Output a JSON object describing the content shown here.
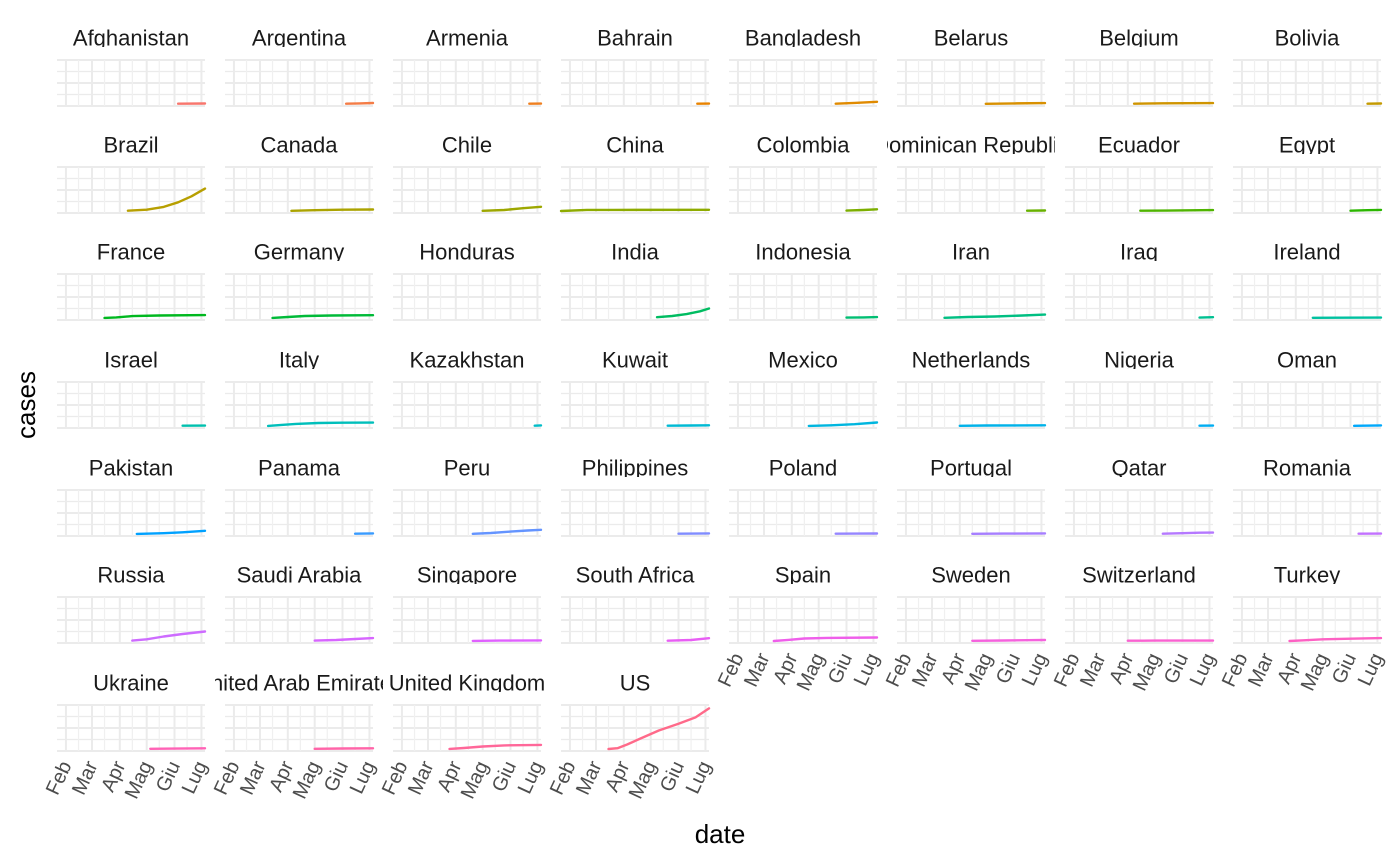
{
  "chart_data": {
    "type": "line",
    "layout": "facet-grid",
    "facet_columns": 8,
    "xlabel": "date",
    "ylabel": "cases",
    "x_tick_labels": [
      "Feb",
      "Mar",
      "Apr",
      "Mag",
      "Giu",
      "Lug"
    ],
    "xlim": [
      "2020-01-22",
      "2020-07-05"
    ],
    "ylim": [
      0,
      3000000
    ],
    "y_tick_labels_shown": false,
    "grid": true,
    "legend": "none",
    "panels": [
      {
        "name": "Afghanistan",
        "color": "#F8766D",
        "x": [
          "2020-06-05",
          "2020-07-05"
        ],
        "y": [
          18000,
          33000
        ]
      },
      {
        "name": "Argentina",
        "color": "#F47C46",
        "x": [
          "2020-06-05",
          "2020-06-20",
          "2020-07-05"
        ],
        "y": [
          20000,
          40000,
          75000
        ]
      },
      {
        "name": "Armenia",
        "color": "#EF7F1F",
        "x": [
          "2020-06-22",
          "2020-07-05"
        ],
        "y": [
          20000,
          29000
        ]
      },
      {
        "name": "Bahrain",
        "color": "#E98300",
        "x": [
          "2020-06-22",
          "2020-07-05"
        ],
        "y": [
          20000,
          29000
        ]
      },
      {
        "name": "Bangladesh",
        "color": "#E08A00",
        "x": [
          "2020-05-20",
          "2020-06-10",
          "2020-07-05"
        ],
        "y": [
          25000,
          80000,
          160000
        ]
      },
      {
        "name": "Belarus",
        "color": "#D89000",
        "x": [
          "2020-04-30",
          "2020-06-01",
          "2020-07-05"
        ],
        "y": [
          15000,
          42000,
          63000
        ]
      },
      {
        "name": "Belgium",
        "color": "#CF9400",
        "x": [
          "2020-04-08",
          "2020-05-10",
          "2020-07-05"
        ],
        "y": [
          22000,
          53000,
          62000
        ]
      },
      {
        "name": "Bolivia",
        "color": "#C49A00",
        "x": [
          "2020-06-20",
          "2020-07-05"
        ],
        "y": [
          20000,
          38000
        ]
      },
      {
        "name": "Brazil",
        "color": "#B79F00",
        "x": [
          "2020-04-10",
          "2020-05-01",
          "2020-05-20",
          "2020-06-05",
          "2020-06-20",
          "2020-07-05"
        ],
        "y": [
          18000,
          90000,
          290000,
          620000,
          1050000,
          1600000
        ]
      },
      {
        "name": "Canada",
        "color": "#ABA300",
        "x": [
          "2020-04-05",
          "2020-05-01",
          "2020-06-01",
          "2020-07-05"
        ],
        "y": [
          15000,
          55000,
          90000,
          105000
        ]
      },
      {
        "name": "Chile",
        "color": "#9DA700",
        "x": [
          "2020-05-01",
          "2020-05-25",
          "2020-06-15",
          "2020-07-05"
        ],
        "y": [
          17000,
          70000,
          200000,
          300000
        ]
      },
      {
        "name": "China",
        "color": "#8EAB00",
        "x": [
          "2020-01-22",
          "2020-02-20",
          "2020-03-20",
          "2020-07-05"
        ],
        "y": [
          500,
          75000,
          81000,
          85000
        ]
      },
      {
        "name": "Colombia",
        "color": "#7CAE00",
        "x": [
          "2020-06-01",
          "2020-06-20",
          "2020-07-05"
        ],
        "y": [
          30000,
          70000,
          120000
        ]
      },
      {
        "name": "Dominican Republic",
        "color": "#68B100",
        "x": [
          "2020-06-15",
          "2020-07-05"
        ],
        "y": [
          22000,
          37000
        ]
      },
      {
        "name": "Ecuador",
        "color": "#4FB400",
        "x": [
          "2020-04-15",
          "2020-05-15",
          "2020-07-05"
        ],
        "y": [
          20000,
          32000,
          62000
        ]
      },
      {
        "name": "Egypt",
        "color": "#2BB600",
        "x": [
          "2020-06-01",
          "2020-06-20",
          "2020-07-05"
        ],
        "y": [
          25000,
          55000,
          75000
        ]
      },
      {
        "name": "France",
        "color": "#00B81F",
        "x": [
          "2020-03-15",
          "2020-03-28",
          "2020-04-15",
          "2020-05-15",
          "2020-07-05"
        ],
        "y": [
          5000,
          40000,
          135000,
          180000,
          205000
        ]
      },
      {
        "name": "Germany",
        "color": "#00BA38",
        "x": [
          "2020-03-15",
          "2020-04-01",
          "2020-04-20",
          "2020-05-20",
          "2020-07-05"
        ],
        "y": [
          6000,
          70000,
          145000,
          180000,
          197000
        ]
      },
      {
        "name": "Honduras",
        "color": "#00BB4E",
        "x": [],
        "y": []
      },
      {
        "name": "India",
        "color": "#00BC61",
        "x": [
          "2020-05-08",
          "2020-05-25",
          "2020-06-10",
          "2020-06-25",
          "2020-07-05"
        ],
        "y": [
          60000,
          140000,
          280000,
          480000,
          680000
        ]
      },
      {
        "name": "Indonesia",
        "color": "#00BE72",
        "x": [
          "2020-06-01",
          "2020-06-20",
          "2020-07-05"
        ],
        "y": [
          27000,
          46000,
          63000
        ]
      },
      {
        "name": "Iran",
        "color": "#00BF82",
        "x": [
          "2020-03-15",
          "2020-04-10",
          "2020-05-10",
          "2020-06-10",
          "2020-07-05"
        ],
        "y": [
          15000,
          70000,
          110000,
          180000,
          240000
        ]
      },
      {
        "name": "Iraq",
        "color": "#00C091",
        "x": [
          "2020-06-20",
          "2020-07-05"
        ],
        "y": [
          30000,
          55000
        ]
      },
      {
        "name": "Ireland",
        "color": "#00C1A0",
        "x": [
          "2020-04-20",
          "2020-05-20",
          "2020-07-05"
        ],
        "y": [
          16000,
          24000,
          25500
        ]
      },
      {
        "name": "Israel",
        "color": "#00C0AE",
        "x": [
          "2020-06-10",
          "2020-07-05"
        ],
        "y": [
          18000,
          30000
        ]
      },
      {
        "name": "Italy",
        "color": "#00BFBB",
        "x": [
          "2020-03-10",
          "2020-03-25",
          "2020-04-10",
          "2020-05-05",
          "2020-06-01",
          "2020-07-05"
        ],
        "y": [
          10000,
          75000,
          150000,
          212000,
          233000,
          241000
        ]
      },
      {
        "name": "Kazakhstan",
        "color": "#00BDC8",
        "x": [
          "2020-06-28",
          "2020-07-05"
        ],
        "y": [
          20000,
          45000
        ]
      },
      {
        "name": "Kuwait",
        "color": "#00BAD4",
        "x": [
          "2020-05-20",
          "2020-06-15",
          "2020-07-05"
        ],
        "y": [
          18000,
          35000,
          50000
        ]
      },
      {
        "name": "Mexico",
        "color": "#00B6DF",
        "x": [
          "2020-04-20",
          "2020-05-15",
          "2020-06-10",
          "2020-07-05"
        ],
        "y": [
          10000,
          50000,
          130000,
          250000
        ]
      },
      {
        "name": "Netherlands",
        "color": "#00B2E9",
        "x": [
          "2020-04-01",
          "2020-05-01",
          "2020-07-05"
        ],
        "y": [
          14000,
          39000,
          51000
        ]
      },
      {
        "name": "Nigeria",
        "color": "#00ADF2",
        "x": [
          "2020-06-20",
          "2020-07-05"
        ],
        "y": [
          20000,
          28000
        ]
      },
      {
        "name": "Oman",
        "color": "#00A8FB",
        "x": [
          "2020-06-05",
          "2020-07-05"
        ],
        "y": [
          17000,
          45000
        ]
      },
      {
        "name": "Pakistan",
        "color": "#00A1FF",
        "x": [
          "2020-04-20",
          "2020-05-20",
          "2020-06-10",
          "2020-07-05"
        ],
        "y": [
          10000,
          55000,
          120000,
          230000
        ]
      },
      {
        "name": "Panama",
        "color": "#399BFF",
        "x": [
          "2020-06-15",
          "2020-07-05"
        ],
        "y": [
          20000,
          42000
        ]
      },
      {
        "name": "Peru",
        "color": "#6494FF",
        "x": [
          "2020-04-20",
          "2020-05-10",
          "2020-06-01",
          "2020-06-20",
          "2020-07-05"
        ],
        "y": [
          17000,
          70000,
          170000,
          250000,
          300000
        ]
      },
      {
        "name": "Philippines",
        "color": "#808CFF",
        "x": [
          "2020-06-01",
          "2020-07-05"
        ],
        "y": [
          18000,
          45000
        ]
      },
      {
        "name": "Poland",
        "color": "#9585FF",
        "x": [
          "2020-05-20",
          "2020-06-15",
          "2020-07-05"
        ],
        "y": [
          20000,
          29000,
          36000
        ]
      },
      {
        "name": "Portugal",
        "color": "#A67EFF",
        "x": [
          "2020-04-15",
          "2020-05-20",
          "2020-07-05"
        ],
        "y": [
          17000,
          31000,
          44000
        ]
      },
      {
        "name": "Qatar",
        "color": "#B578FF",
        "x": [
          "2020-05-10",
          "2020-06-01",
          "2020-06-20",
          "2020-07-05"
        ],
        "y": [
          20000,
          55000,
          90000,
          100000
        ]
      },
      {
        "name": "Romania",
        "color": "#C271FF",
        "x": [
          "2020-06-10",
          "2020-07-05"
        ],
        "y": [
          20000,
          29000
        ]
      },
      {
        "name": "Russia",
        "color": "#CD6BFF",
        "x": [
          "2020-04-15",
          "2020-05-01",
          "2020-05-20",
          "2020-06-10",
          "2020-07-05"
        ],
        "y": [
          25000,
          120000,
          320000,
          500000,
          680000
        ]
      },
      {
        "name": "Saudi Arabia",
        "color": "#D765FF",
        "x": [
          "2020-05-01",
          "2020-05-25",
          "2020-06-15",
          "2020-07-05"
        ],
        "y": [
          25000,
          75000,
          140000,
          210000
        ]
      },
      {
        "name": "Singapore",
        "color": "#E061FF",
        "x": [
          "2020-04-20",
          "2020-05-20",
          "2020-07-05"
        ],
        "y": [
          10000,
          30000,
          45000
        ]
      },
      {
        "name": "South Africa",
        "color": "#E85EF4",
        "x": [
          "2020-05-20",
          "2020-06-15",
          "2020-07-05"
        ],
        "y": [
          20000,
          70000,
          200000
        ]
      },
      {
        "name": "Spain",
        "color": "#EF5EEA",
        "x": [
          "2020-03-12",
          "2020-03-28",
          "2020-04-15",
          "2020-05-10",
          "2020-07-05"
        ],
        "y": [
          3000,
          80000,
          180000,
          225000,
          250000
        ]
      },
      {
        "name": "Sweden",
        "color": "#F562DD",
        "x": [
          "2020-04-15",
          "2020-05-20",
          "2020-06-15",
          "2020-07-05"
        ],
        "y": [
          12000,
          33000,
          55000,
          72000
        ]
      },
      {
        "name": "Switzerland",
        "color": "#FA62D1",
        "x": [
          "2020-04-01",
          "2020-05-01",
          "2020-07-05"
        ],
        "y": [
          18000,
          29000,
          32000
        ]
      },
      {
        "name": "Turkey",
        "color": "#FD61C3",
        "x": [
          "2020-03-25",
          "2020-04-10",
          "2020-05-01",
          "2020-06-01",
          "2020-07-05"
        ],
        "y": [
          2000,
          50000,
          120000,
          165000,
          205000
        ]
      },
      {
        "name": "Ukraine",
        "color": "#FF62B6",
        "x": [
          "2020-05-05",
          "2020-06-01",
          "2020-07-05"
        ],
        "y": [
          14000,
          25000,
          47000
        ]
      },
      {
        "name": "United Arab Emirates",
        "color": "#FF64A8",
        "x": [
          "2020-05-01",
          "2020-06-01",
          "2020-07-05"
        ],
        "y": [
          14000,
          35000,
          50000
        ]
      },
      {
        "name": "United Kingdom",
        "color": "#FF6799",
        "x": [
          "2020-03-25",
          "2020-04-10",
          "2020-05-01",
          "2020-05-25",
          "2020-07-05"
        ],
        "y": [
          10000,
          75000,
          175000,
          255000,
          290000
        ]
      },
      {
        "name": "US",
        "color": "#FF6A8A",
        "x": [
          "2020-03-15",
          "2020-03-25",
          "2020-04-05",
          "2020-04-20",
          "2020-05-10",
          "2020-06-01",
          "2020-06-20",
          "2020-07-05"
        ],
        "y": [
          3000,
          60000,
          330000,
          760000,
          1320000,
          1800000,
          2260000,
          2900000
        ]
      }
    ]
  }
}
